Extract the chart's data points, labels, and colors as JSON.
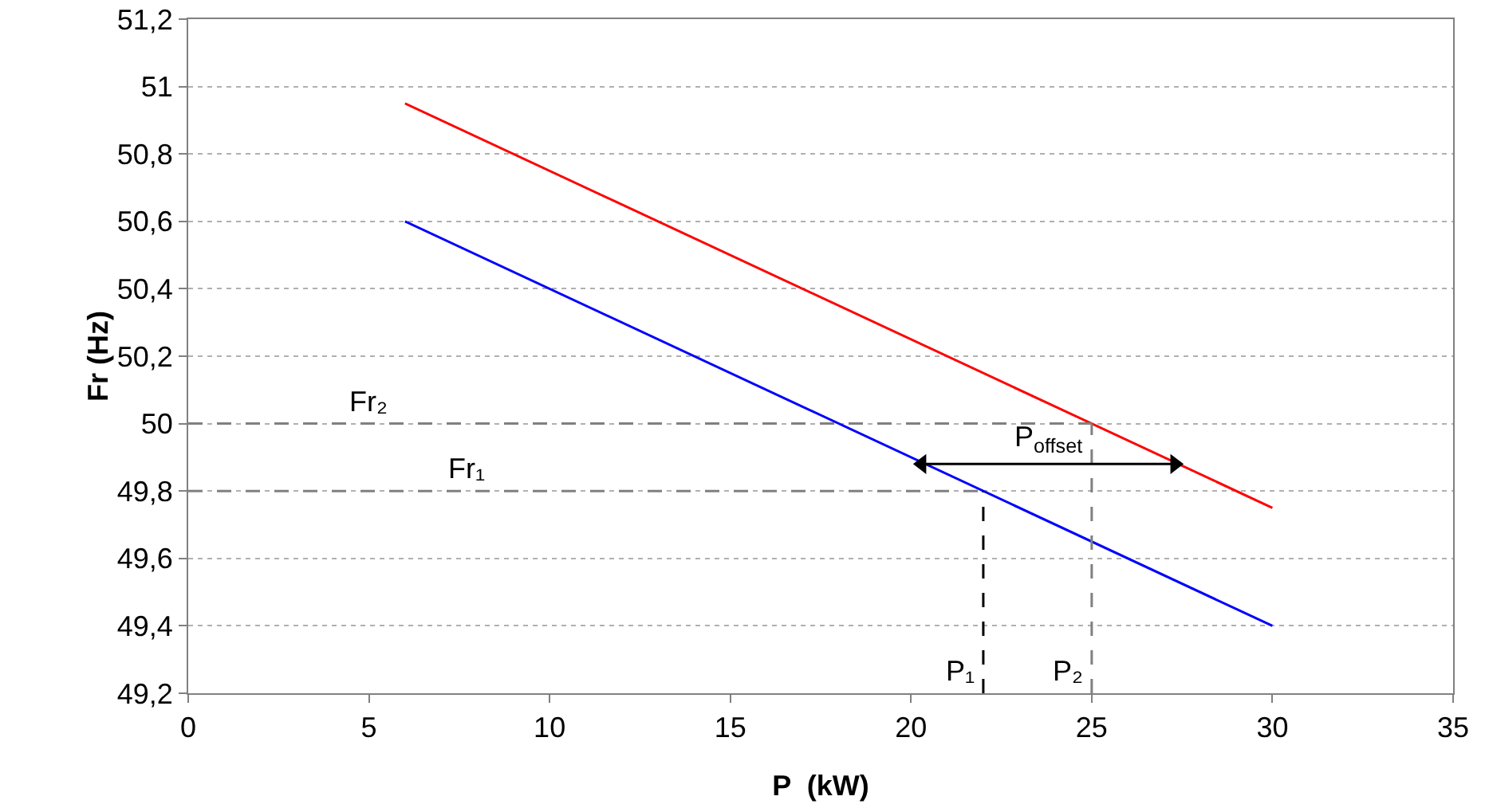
{
  "chart_data": {
    "type": "line",
    "xlabel": "P  (kW)",
    "ylabel": "Fr (Hz)",
    "xlim": [
      0,
      35
    ],
    "xticks": [
      0,
      5,
      10,
      15,
      20,
      25,
      30,
      35
    ],
    "ylim": [
      49.2,
      51.2
    ],
    "yticks": [
      {
        "value": 49.2,
        "label": "49,2"
      },
      {
        "value": 49.4,
        "label": "49,4"
      },
      {
        "value": 49.6,
        "label": "49,6"
      },
      {
        "value": 49.8,
        "label": "49,8"
      },
      {
        "value": 50,
        "label": "50"
      },
      {
        "value": 50.2,
        "label": "50,2"
      },
      {
        "value": 50.4,
        "label": "50,4"
      },
      {
        "value": 50.6,
        "label": "50,6"
      },
      {
        "value": 50.8,
        "label": "50,8"
      },
      {
        "value": 51,
        "label": "51"
      },
      {
        "value": 51.2,
        "label": "51,2"
      }
    ],
    "grid": "y",
    "series": [
      {
        "color": "#ff0000",
        "x": [
          6,
          30
        ],
        "values": [
          50.95,
          49.75
        ]
      },
      {
        "color": "#0000ff",
        "x": [
          6,
          30
        ],
        "values": [
          50.6,
          49.4
        ]
      },
      {
        "color": "#808080",
        "x": [
          0,
          25
        ],
        "values": [
          50,
          50
        ],
        "line_style": "dashed"
      },
      {
        "color": "#808080",
        "x": [
          0,
          22
        ],
        "values": [
          49.8,
          49.8
        ],
        "line_style": "dashed"
      },
      {
        "color": "#000000",
        "x": [
          22,
          22
        ],
        "values": [
          49.2,
          49.8
        ],
        "line_style": "dashed"
      },
      {
        "color": "#808080",
        "x": [
          25,
          25
        ],
        "values": [
          49.2,
          50
        ],
        "line_style": "dashed"
      },
      {
        "color": "#000000",
        "x": [
          20.3,
          27.3
        ],
        "values": [
          49.88,
          49.88
        ],
        "marker": "triangle"
      }
    ],
    "annotations": [
      {
        "text": "Fr₂",
        "x": 5,
        "y": 50
      },
      {
        "text": "Fr₁",
        "x": 7.7,
        "y": 49.8
      },
      {
        "text": "P₁",
        "x": 22,
        "y": 49.2
      },
      {
        "text": "P₂",
        "x": 25,
        "y": 49.2
      },
      {
        "text": "P$_{offset}$",
        "x": 23.8,
        "y": 49.88
      }
    ]
  }
}
